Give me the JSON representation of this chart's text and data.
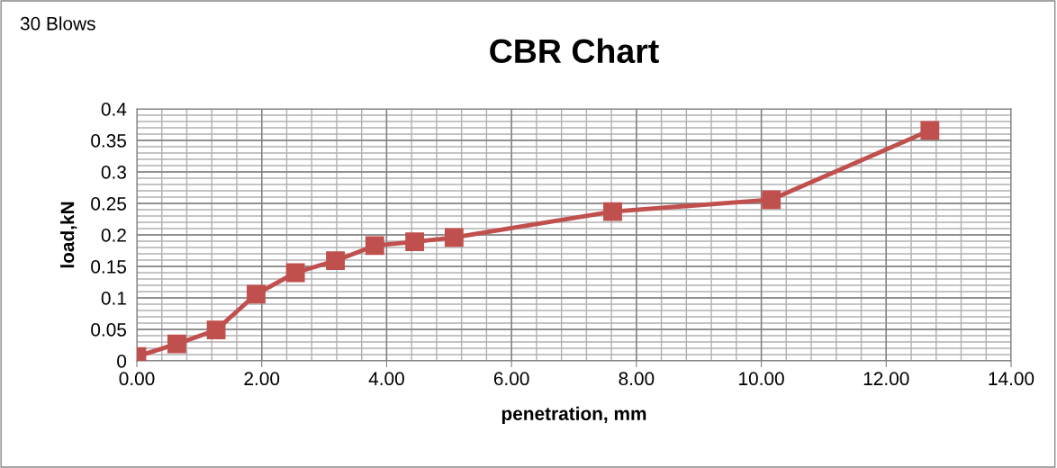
{
  "chart_data": {
    "type": "line",
    "title": "CBR Chart",
    "xlabel": "penetration, mm",
    "ylabel": "load,kN",
    "annotations": [
      "30 Blows"
    ],
    "x": [
      0,
      0.64,
      1.27,
      1.91,
      2.54,
      3.18,
      3.81,
      4.45,
      5.08,
      7.62,
      10.16,
      12.7
    ],
    "series": [
      {
        "color": "#c0504d",
        "values": [
          0.007,
          0.027,
          0.049,
          0.106,
          0.14,
          0.159,
          0.183,
          0.189,
          0.196,
          0.237,
          0.256,
          0.366
        ]
      }
    ],
    "xlim": [
      0,
      14
    ],
    "xticks": [
      {
        "value": 0,
        "label": "0.00"
      },
      {
        "value": 2,
        "label": "2.00"
      },
      {
        "value": 4,
        "label": "4.00"
      },
      {
        "value": 6,
        "label": "6.00"
      },
      {
        "value": 8,
        "label": "8.00"
      },
      {
        "value": 10,
        "label": "10.00"
      },
      {
        "value": 12,
        "label": "12.00"
      },
      {
        "value": 14,
        "label": "14.00"
      }
    ],
    "ylim": [
      0,
      0.4
    ],
    "yticks": [
      0,
      0.05,
      0.1,
      0.15,
      0.2,
      0.25,
      0.3,
      0.35,
      0.4
    ],
    "grid": true,
    "marker": "square",
    "line_style": "solid"
  }
}
